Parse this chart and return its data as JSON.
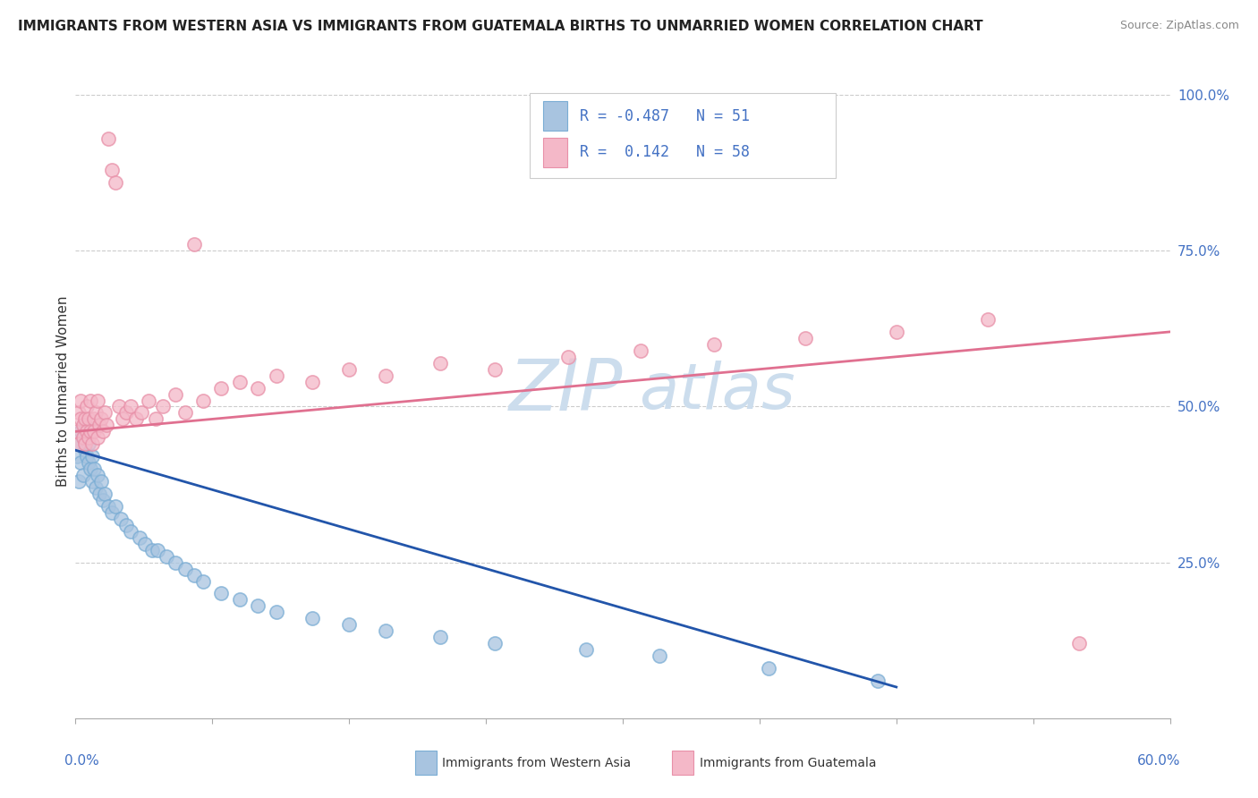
{
  "title": "IMMIGRANTS FROM WESTERN ASIA VS IMMIGRANTS FROM GUATEMALA BIRTHS TO UNMARRIED WOMEN CORRELATION CHART",
  "source": "Source: ZipAtlas.com",
  "ylabel": "Births to Unmarried Women",
  "series1_label": "Immigrants from Western Asia",
  "series1_color": "#a8c4e0",
  "series1_edge_color": "#7aadd4",
  "series1_line_color": "#2255aa",
  "series1_R": -0.487,
  "series1_N": 51,
  "series2_label": "Immigrants from Guatemala",
  "series2_color": "#f4b8c8",
  "series2_edge_color": "#e890a8",
  "series2_line_color": "#e07090",
  "series2_R": 0.142,
  "series2_N": 58,
  "watermark_color": "#ccdded",
  "background_color": "#ffffff",
  "series1_x": [
    0.001,
    0.002,
    0.002,
    0.003,
    0.003,
    0.004,
    0.004,
    0.005,
    0.005,
    0.006,
    0.006,
    0.007,
    0.007,
    0.008,
    0.009,
    0.009,
    0.01,
    0.011,
    0.012,
    0.013,
    0.014,
    0.015,
    0.016,
    0.018,
    0.02,
    0.022,
    0.025,
    0.028,
    0.03,
    0.035,
    0.038,
    0.042,
    0.045,
    0.05,
    0.055,
    0.06,
    0.065,
    0.07,
    0.08,
    0.09,
    0.1,
    0.11,
    0.13,
    0.15,
    0.17,
    0.2,
    0.23,
    0.28,
    0.32,
    0.38,
    0.44
  ],
  "series1_y": [
    0.42,
    0.44,
    0.38,
    0.46,
    0.41,
    0.45,
    0.39,
    0.43,
    0.47,
    0.42,
    0.46,
    0.41,
    0.44,
    0.4,
    0.42,
    0.38,
    0.4,
    0.37,
    0.39,
    0.36,
    0.38,
    0.35,
    0.36,
    0.34,
    0.33,
    0.34,
    0.32,
    0.31,
    0.3,
    0.29,
    0.28,
    0.27,
    0.27,
    0.26,
    0.25,
    0.24,
    0.23,
    0.22,
    0.2,
    0.19,
    0.18,
    0.17,
    0.16,
    0.15,
    0.14,
    0.13,
    0.12,
    0.11,
    0.1,
    0.08,
    0.06
  ],
  "series2_x": [
    0.001,
    0.002,
    0.002,
    0.003,
    0.003,
    0.004,
    0.004,
    0.005,
    0.005,
    0.006,
    0.006,
    0.007,
    0.007,
    0.008,
    0.008,
    0.009,
    0.01,
    0.01,
    0.011,
    0.012,
    0.012,
    0.013,
    0.014,
    0.015,
    0.016,
    0.017,
    0.018,
    0.02,
    0.022,
    0.024,
    0.026,
    0.028,
    0.03,
    0.033,
    0.036,
    0.04,
    0.044,
    0.048,
    0.055,
    0.06,
    0.065,
    0.07,
    0.08,
    0.09,
    0.1,
    0.11,
    0.13,
    0.15,
    0.17,
    0.2,
    0.23,
    0.27,
    0.31,
    0.35,
    0.4,
    0.45,
    0.5,
    0.55
  ],
  "series2_y": [
    0.46,
    0.49,
    0.44,
    0.48,
    0.51,
    0.45,
    0.47,
    0.44,
    0.48,
    0.46,
    0.5,
    0.45,
    0.48,
    0.46,
    0.51,
    0.44,
    0.48,
    0.46,
    0.49,
    0.45,
    0.51,
    0.47,
    0.48,
    0.46,
    0.49,
    0.47,
    0.93,
    0.88,
    0.86,
    0.5,
    0.48,
    0.49,
    0.5,
    0.48,
    0.49,
    0.51,
    0.48,
    0.5,
    0.52,
    0.49,
    0.76,
    0.51,
    0.53,
    0.54,
    0.53,
    0.55,
    0.54,
    0.56,
    0.55,
    0.57,
    0.56,
    0.58,
    0.59,
    0.6,
    0.61,
    0.62,
    0.64,
    0.12
  ]
}
